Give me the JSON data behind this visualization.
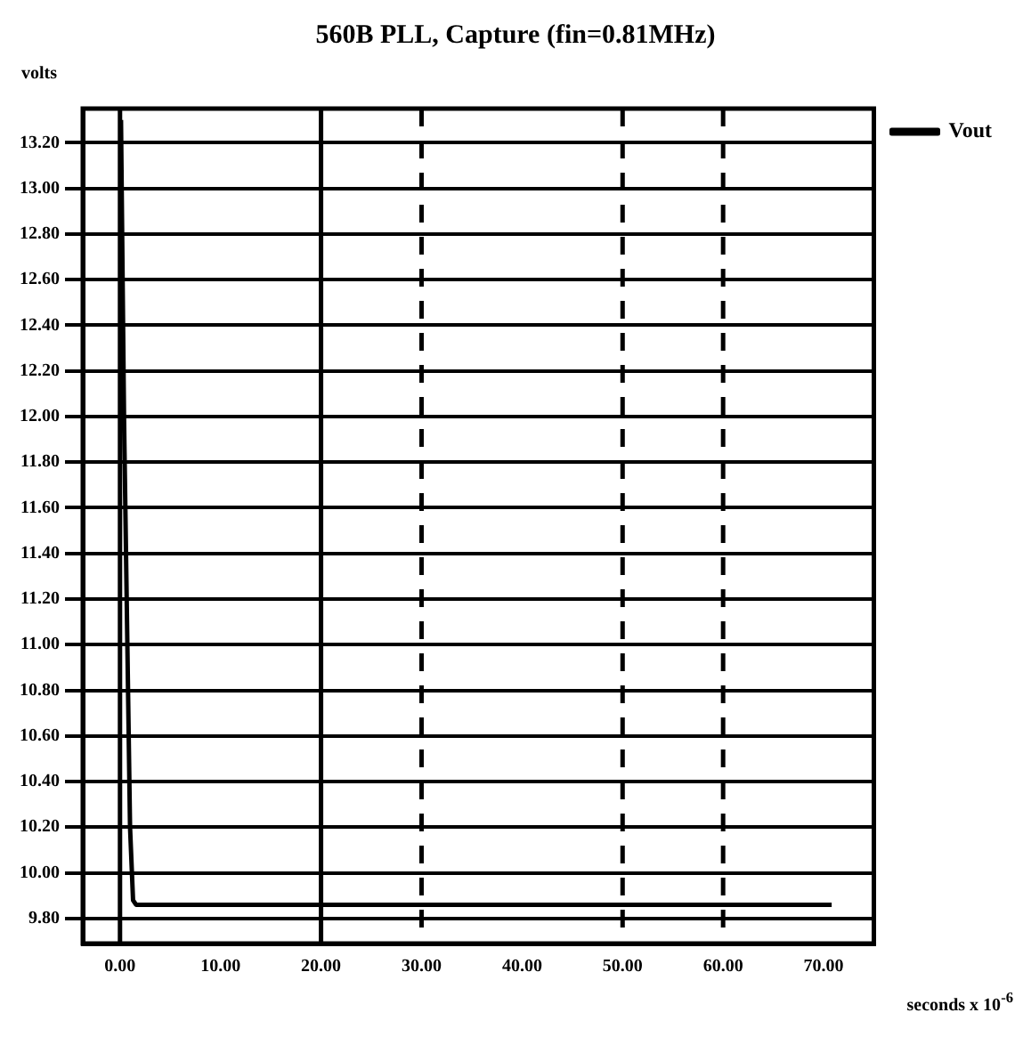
{
  "chart_data": {
    "type": "line",
    "title": "560B PLL, Capture (fin=0.81MHz)",
    "xlabel": "seconds x 10$^{-6}$",
    "ylabel": "volts",
    "x": [
      0.1,
      0.4,
      1.0,
      1.3,
      1.6,
      70.8
    ],
    "series": [
      {
        "name": "Vout",
        "color": "#000000",
        "values": [
          13.3,
          12.0,
          10.2,
          9.88,
          9.86,
          9.86
        ]
      }
    ],
    "xlim": [
      -3.7,
      75
    ],
    "ylim": [
      9.69,
      13.35
    ],
    "xticks": [
      {
        "value": 0,
        "label": "0.00"
      },
      {
        "value": 10,
        "label": "10.00"
      },
      {
        "value": 20,
        "label": "20.00"
      },
      {
        "value": 30,
        "label": "30.00"
      },
      {
        "value": 40,
        "label": "40.00"
      },
      {
        "value": 50,
        "label": "50.00"
      },
      {
        "value": 60,
        "label": "60.00"
      },
      {
        "value": 70,
        "label": "70.00"
      }
    ],
    "yticks": [
      {
        "value": 9.8,
        "label": "9.80"
      },
      {
        "value": 10,
        "label": "10.00"
      },
      {
        "value": 10.2,
        "label": "10.20"
      },
      {
        "value": 10.4,
        "label": "10.40"
      },
      {
        "value": 10.6,
        "label": "10.60"
      },
      {
        "value": 10.8,
        "label": "10.80"
      },
      {
        "value": 11,
        "label": "11.00"
      },
      {
        "value": 11.2,
        "label": "11.20"
      },
      {
        "value": 11.4,
        "label": "11.40"
      },
      {
        "value": 11.6,
        "label": "11.60"
      },
      {
        "value": 11.8,
        "label": "11.80"
      },
      {
        "value": 12,
        "label": "12.00"
      },
      {
        "value": 12.2,
        "label": "12.20"
      },
      {
        "value": 12.4,
        "label": "12.40"
      },
      {
        "value": 12.6,
        "label": "12.60"
      },
      {
        "value": 12.8,
        "label": "12.80"
      },
      {
        "value": 13,
        "label": "13.00"
      },
      {
        "value": 13.2,
        "label": "13.20"
      }
    ],
    "ref_lines": [
      {
        "axis": "x",
        "value": 0,
        "label": null
      },
      {
        "axis": "x",
        "value": 20,
        "label": null
      },
      {
        "axis": "x",
        "value": 30,
        "label": null,
        "line_style": "dashed"
      },
      {
        "axis": "x",
        "value": 50,
        "label": null,
        "line_style": "dashed"
      },
      {
        "axis": "x",
        "value": 60,
        "label": null,
        "line_style": "dashed"
      }
    ],
    "grid": "y",
    "legend": "top right",
    "marker": "none",
    "line_style": "solid"
  }
}
